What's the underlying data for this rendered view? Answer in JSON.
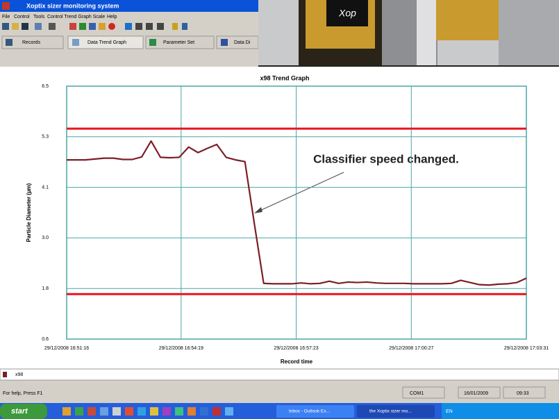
{
  "window": {
    "title": "Xoptix sizer monitoring system",
    "menu": [
      "File",
      "Control",
      "Tools",
      "Control Trend Graph Scale",
      "Help"
    ],
    "tabs": [
      "Records",
      "Data Trend Graph",
      "Parameter Set",
      "Data Di"
    ]
  },
  "photo": {
    "logo": "Xop"
  },
  "chart_data": {
    "type": "line",
    "title": "x98 Trend Graph",
    "x_label": "Record time",
    "y_label": "Particle Diameter (µm)",
    "annotation": "Classifier speed changed.",
    "x": [
      "29/12/2008 16:51:16",
      "29/12/2008 16:51:31",
      "29/12/2008 16:51:46",
      "29/12/2008 16:52:01",
      "29/12/2008 16:52:16",
      "29/12/2008 16:52:31",
      "29/12/2008 16:52:46",
      "29/12/2008 16:53:01",
      "29/12/2008 16:53:16",
      "29/12/2008 16:53:31",
      "29/12/2008 16:53:46",
      "29/12/2008 16:54:01",
      "29/12/2008 16:54:16",
      "29/12/2008 16:54:31",
      "29/12/2008 16:54:46",
      "29/12/2008 16:55:01",
      "29/12/2008 16:55:16",
      "29/12/2008 16:55:31",
      "29/12/2008 16:55:46",
      "29/12/2008 16:56:01",
      "29/12/2008 16:56:16",
      "29/12/2008 16:56:31",
      "29/12/2008 16:56:46",
      "29/12/2008 16:57:01",
      "29/12/2008 16:57:16",
      "29/12/2008 16:57:31",
      "29/12/2008 16:57:46",
      "29/12/2008 16:58:01",
      "29/12/2008 16:58:16",
      "29/12/2008 16:58:31",
      "29/12/2008 16:58:46",
      "29/12/2008 16:59:01",
      "29/12/2008 16:59:16",
      "29/12/2008 16:59:31",
      "29/12/2008 16:59:46",
      "29/12/2008 17:00:01",
      "29/12/2008 17:00:16",
      "29/12/2008 17:00:31",
      "29/12/2008 17:00:46",
      "29/12/2008 17:01:01",
      "29/12/2008 17:01:16",
      "29/12/2008 17:01:31",
      "29/12/2008 17:01:46",
      "29/12/2008 17:02:01",
      "29/12/2008 17:02:16",
      "29/12/2008 17:02:31",
      "29/12/2008 17:02:46",
      "29/12/2008 17:03:01",
      "29/12/2008 17:03:16",
      "29/12/2008 17:03:31"
    ],
    "series": [
      {
        "name": "x98",
        "color": "#7a1f26",
        "values": [
          4.78,
          4.78,
          4.78,
          4.8,
          4.82,
          4.82,
          4.79,
          4.79,
          4.85,
          5.22,
          4.84,
          4.83,
          4.84,
          5.08,
          4.95,
          5.05,
          5.14,
          4.84,
          4.78,
          4.74,
          3.3,
          1.9,
          1.89,
          1.89,
          1.89,
          1.91,
          1.89,
          1.9,
          1.95,
          1.9,
          1.93,
          1.92,
          1.93,
          1.91,
          1.9,
          1.9,
          1.9,
          1.89,
          1.89,
          1.89,
          1.89,
          1.9,
          1.97,
          1.92,
          1.87,
          1.86,
          1.88,
          1.89,
          1.92,
          2.02
        ]
      }
    ],
    "limit_lines": {
      "color": "#e8141c",
      "values": [
        5.51,
        1.65
      ]
    },
    "xlim": [
      "29/12/2008 16:51:16",
      "29/12/2008 17:03:31"
    ],
    "xticks": [
      "29/12/2008 16:51:16",
      "29/12/2008 16:54:19",
      "29/12/2008 16:57:23",
      "29/12/2008 17:00:27",
      "29/12/2008 17:03:31"
    ],
    "ylim": [
      0.6,
      6.5
    ],
    "yticks": [
      0.6,
      {
        "value": 1.78,
        "label": "1.8"
      },
      {
        "value": 2.96,
        "label": "3.0"
      },
      {
        "value": 4.14,
        "label": "4.1"
      },
      {
        "value": 5.32,
        "label": "5.3"
      },
      6.5
    ],
    "grid": true,
    "grid_color": "#4aa6a6"
  },
  "status_bar": {
    "help": "For help, Press F1",
    "port": "COM1",
    "date": "16/01/2009",
    "time": "09:33"
  },
  "taskbar": {
    "start": "start",
    "tasks": [
      "Inbox - Outlook Ex...",
      "the Xoptix sizer mo..."
    ],
    "language": "EN"
  }
}
